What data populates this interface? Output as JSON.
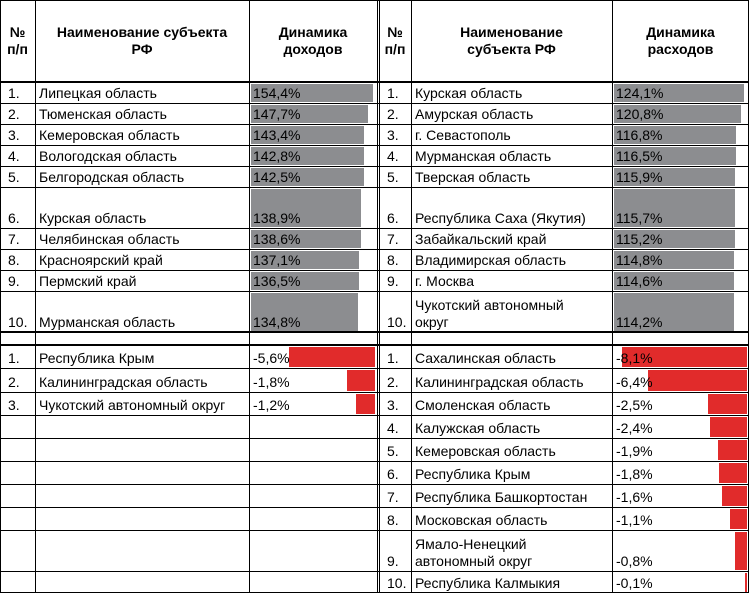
{
  "headers": {
    "num": "№\nп/п",
    "region": "Наименование субъекта\nРФ",
    "income": "Динамика\nдоходов",
    "num2": "№\nп/п",
    "region2": "Наименование\nсубъекта РФ",
    "expense": "Динамика\nрасходов"
  },
  "income_top": [
    {
      "n": "1.",
      "name": "Липецкая область",
      "value": "154,4%",
      "v": 154.4
    },
    {
      "n": "2.",
      "name": "Тюменская область",
      "value": "147,7%",
      "v": 147.7
    },
    {
      "n": "3.",
      "name": "Кемеровская область",
      "value": "143,4%",
      "v": 143.4
    },
    {
      "n": "4.",
      "name": "Вологодская область",
      "value": "142,8%",
      "v": 142.8
    },
    {
      "n": "5.",
      "name": "Белгородская область",
      "value": "142,5%",
      "v": 142.5
    },
    {
      "n": "6.",
      "name": "Курская область",
      "value": "138,9%",
      "v": 138.9
    },
    {
      "n": "7.",
      "name": "Челябинская область",
      "value": "138,6%",
      "v": 138.6
    },
    {
      "n": "8.",
      "name": "Красноярский край",
      "value": "137,1%",
      "v": 137.1
    },
    {
      "n": "9.",
      "name": "Пермский край",
      "value": "136,5%",
      "v": 136.5
    },
    {
      "n": "10.",
      "name": "Мурманская область",
      "value": "134,8%",
      "v": 134.8
    }
  ],
  "expense_top": [
    {
      "n": "1.",
      "name": "Курская область",
      "value": "124,1%",
      "v": 124.1
    },
    {
      "n": "2.",
      "name": "Амурская область",
      "value": "120,8%",
      "v": 120.8
    },
    {
      "n": "3.",
      "name": "г. Севастополь",
      "value": "116,8%",
      "v": 116.8
    },
    {
      "n": "4.",
      "name": "Мурманская область",
      "value": "116,5%",
      "v": 116.5
    },
    {
      "n": "5.",
      "name": "Тверская область",
      "value": "115,9%",
      "v": 115.9
    },
    {
      "n": "6.",
      "name": "Республика Саха (Якутия)",
      "value": "115,7%",
      "v": 115.7
    },
    {
      "n": "7.",
      "name": "Забайкальский край",
      "value": "115,2%",
      "v": 115.2
    },
    {
      "n": "8.",
      "name": "Владимирская область",
      "value": "114,8%",
      "v": 114.8
    },
    {
      "n": "9.",
      "name": "г. Москва",
      "value": "114,6%",
      "v": 114.6
    },
    {
      "n": "10.",
      "name": "Чукотский автономный\nокруг",
      "value": "114,2%",
      "v": 114.2
    }
  ],
  "income_bottom": [
    {
      "n": "1.",
      "name": "Республика Крым",
      "value": "-5,6%",
      "v": -5.6
    },
    {
      "n": "2.",
      "name": "Калининградская область",
      "value": "-1,8%",
      "v": -1.8
    },
    {
      "n": "3.",
      "name": "Чукотский автономный округ",
      "value": "-1,2%",
      "v": -1.2
    }
  ],
  "expense_bottom": [
    {
      "n": "1.",
      "name": "Сахалинская область",
      "value": "-8,1%",
      "v": -8.1
    },
    {
      "n": "2.",
      "name": "Калининградская область",
      "value": "-6,4%",
      "v": -6.4
    },
    {
      "n": "3.",
      "name": "Смоленская область",
      "value": "-2,5%",
      "v": -2.5
    },
    {
      "n": "4.",
      "name": " Калужская область",
      "value": "-2,4%",
      "v": -2.4
    },
    {
      "n": "5.",
      "name": "Кемеровская область",
      "value": "-1,9%",
      "v": -1.9
    },
    {
      "n": "6.",
      "name": "Республика Крым",
      "value": "-1,8%",
      "v": -1.8
    },
    {
      "n": "7.",
      "name": "Республика Башкортостан",
      "value": "-1,6%",
      "v": -1.6
    },
    {
      "n": "8.",
      "name": "Московская область",
      "value": "-1,1%",
      "v": -1.1
    },
    {
      "n": "9.",
      "name": "Ямало-Ненецкий\nавтономный округ",
      "value": "-0,8%",
      "v": -0.8
    },
    {
      "n": "10.",
      "name": "Республика Калмыкия",
      "value": "-0,1%",
      "v": -0.1
    }
  ],
  "colors": {
    "bar_positive": "#8c8d90",
    "bar_negative": "#e12b2b",
    "grid": "#000000"
  }
}
